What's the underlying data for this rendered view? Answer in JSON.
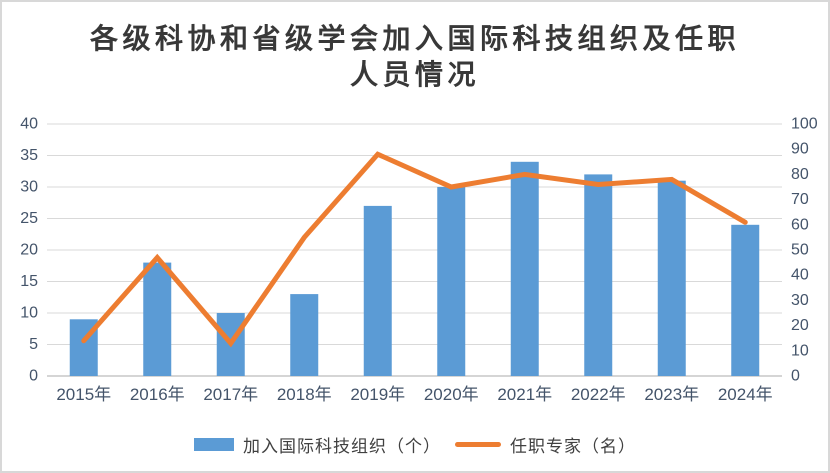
{
  "title": {
    "line1": "各级科协和省级学会加入国际科技组织及任职",
    "line2": "人员情况"
  },
  "chart_data": {
    "type": "combo",
    "categories": [
      "2015年",
      "2016年",
      "2017年",
      "2018年",
      "2019年",
      "2020年",
      "2021年",
      "2022年",
      "2023年",
      "2024年"
    ],
    "series": [
      {
        "name": "加入国际科技组织（个）",
        "chart_type": "bar",
        "axis": "left",
        "color": "#5B9BD5",
        "values": [
          9,
          18,
          10,
          13,
          27,
          30,
          34,
          32,
          31,
          24
        ]
      },
      {
        "name": "任职专家（名）",
        "chart_type": "line",
        "axis": "right",
        "color": "#ED7D31",
        "values": [
          14,
          47,
          13,
          55,
          88,
          75,
          80,
          76,
          78,
          61
        ]
      }
    ],
    "axes": {
      "left": {
        "min": 0,
        "max": 40,
        "step": 5,
        "tick_labels": [
          "40",
          "35",
          "30",
          "25",
          "20",
          "15",
          "10",
          "5",
          "0"
        ]
      },
      "right": {
        "min": 0,
        "max": 100,
        "step": 10,
        "tick_labels": [
          "100",
          "90",
          "80",
          "70",
          "60",
          "50",
          "40",
          "30",
          "20",
          "10",
          "0"
        ]
      }
    },
    "grid": true,
    "legend_position": "bottom"
  },
  "colors": {
    "bar": "#5B9BD5",
    "line": "#ED7D31",
    "gridline": "#D9D9D9",
    "axis_line": "#D5D5D5",
    "axis_text": "#44546A",
    "title_text": "#383838",
    "legend_text": "#404040",
    "border": "#D8D8D8",
    "background": "#FFFFFF"
  }
}
